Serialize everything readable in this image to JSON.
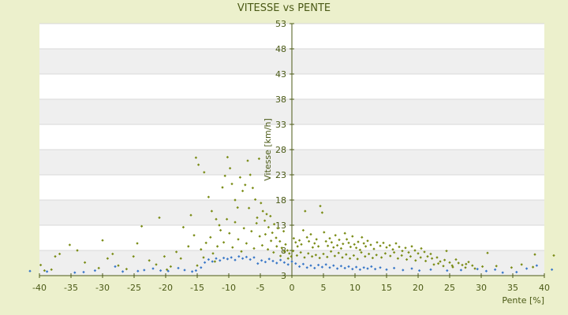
{
  "chart_data": {
    "type": "scatter",
    "title": "VITESSE vs PENTE",
    "xlabel": "Pente [%]",
    "ylabel": "Vitesse [km/h]",
    "xlim": [
      -40,
      40
    ],
    "ylim": [
      3,
      53
    ],
    "x_ticks": [
      "-40",
      "-35",
      "-30",
      "-25",
      "-20",
      "-15",
      "-10",
      "-5",
      "0",
      "5",
      "10",
      "15",
      "20",
      "25",
      "30",
      "35",
      "40"
    ],
    "y_ticks": [
      "3",
      "8",
      "13",
      "18",
      "23",
      "28",
      "33",
      "38",
      "43",
      "48",
      "53"
    ],
    "grid": true,
    "legend": "none",
    "colors": {
      "background": "#ecf0cc",
      "plot_band_light": "#ffffff",
      "plot_band_dark": "#efefef",
      "axis": "#4b5a16",
      "series_olive": "#7a8c16",
      "series_blue": "#3a78c8"
    },
    "series": [
      {
        "color": "olive",
        "points": [
          [
            -15.2,
            26.4
          ],
          [
            -14.8,
            25.0
          ],
          [
            -13.9,
            23.5
          ],
          [
            -13.2,
            18.6
          ],
          [
            -12.7,
            15.8
          ],
          [
            -12.0,
            14.2
          ],
          [
            -11.5,
            13.0
          ],
          [
            -11.0,
            20.5
          ],
          [
            -10.6,
            22.8
          ],
          [
            -10.2,
            26.5
          ],
          [
            -9.8,
            24.3
          ],
          [
            -9.5,
            21.2
          ],
          [
            -9.0,
            18.0
          ],
          [
            -8.6,
            16.5
          ],
          [
            -8.2,
            22.5
          ],
          [
            -7.8,
            19.8
          ],
          [
            -7.4,
            21.0
          ],
          [
            -7.0,
            25.8
          ],
          [
            -6.6,
            23.0
          ],
          [
            -6.2,
            20.4
          ],
          [
            -5.8,
            18.1
          ],
          [
            -5.5,
            14.5
          ],
          [
            -5.2,
            26.2
          ],
          [
            -4.9,
            17.4
          ],
          [
            -4.6,
            15.8
          ],
          [
            -4.3,
            13.9
          ],
          [
            -4.0,
            15.2
          ],
          [
            -3.7,
            12.6
          ],
          [
            -3.4,
            14.8
          ],
          [
            -3.1,
            11.5
          ],
          [
            -2.8,
            13.2
          ],
          [
            -2.5,
            10.5
          ],
          [
            -2.2,
            12.4
          ],
          [
            -1.9,
            9.8
          ],
          [
            -1.6,
            8.5
          ],
          [
            -1.3,
            11.8
          ],
          [
            -1.0,
            9.2
          ],
          [
            -0.7,
            8.0
          ],
          [
            -0.4,
            7.4
          ],
          [
            -0.1,
            6.8
          ],
          [
            0.3,
            10.4
          ],
          [
            0.6,
            9.6
          ],
          [
            0.9,
            8.8
          ],
          [
            1.2,
            10.0
          ],
          [
            1.5,
            9.2
          ],
          [
            1.8,
            12.0
          ],
          [
            2.1,
            15.8
          ],
          [
            2.4,
            10.6
          ],
          [
            2.7,
            9.8
          ],
          [
            3.0,
            11.2
          ],
          [
            3.3,
            8.6
          ],
          [
            3.6,
            9.4
          ],
          [
            3.9,
            10.2
          ],
          [
            4.2,
            8.8
          ],
          [
            4.5,
            16.8
          ],
          [
            4.8,
            15.5
          ],
          [
            5.1,
            11.6
          ],
          [
            5.4,
            9.8
          ],
          [
            5.7,
            8.9
          ],
          [
            6.0,
            10.4
          ],
          [
            6.3,
            9.6
          ],
          [
            6.6,
            8.6
          ],
          [
            6.9,
            11.0
          ],
          [
            7.2,
            9.0
          ],
          [
            7.5,
            10.1
          ],
          [
            7.8,
            8.4
          ],
          [
            8.1,
            9.3
          ],
          [
            8.4,
            11.4
          ],
          [
            8.7,
            10.2
          ],
          [
            9.0,
            9.5
          ],
          [
            9.3,
            8.7
          ],
          [
            9.6,
            10.8
          ],
          [
            9.9,
            9.2
          ],
          [
            10.2,
            8.5
          ],
          [
            10.5,
            9.7
          ],
          [
            10.8,
            8.1
          ],
          [
            11.1,
            10.6
          ],
          [
            11.4,
            9.4
          ],
          [
            11.7,
            8.8
          ],
          [
            12.0,
            9.9
          ],
          [
            12.5,
            9.1
          ],
          [
            13.0,
            8.3
          ],
          [
            13.5,
            9.6
          ],
          [
            14.0,
            8.9
          ],
          [
            14.5,
            9.5
          ],
          [
            15.0,
            8.6
          ],
          [
            15.5,
            9.0
          ],
          [
            16.0,
            8.2
          ],
          [
            16.5,
            9.4
          ],
          [
            17.0,
            8.7
          ],
          [
            17.5,
            7.9
          ],
          [
            18.0,
            8.5
          ],
          [
            18.5,
            7.6
          ],
          [
            19.0,
            8.8
          ],
          [
            19.5,
            8.0
          ],
          [
            20.0,
            7.4
          ],
          [
            20.5,
            8.4
          ],
          [
            21.0,
            7.7
          ],
          [
            21.5,
            6.8
          ],
          [
            22.0,
            7.3
          ],
          [
            22.5,
            5.2
          ],
          [
            23.0,
            6.6
          ],
          [
            23.5,
            5.8
          ],
          [
            24.0,
            4.9
          ],
          [
            24.5,
            7.9
          ],
          [
            25.0,
            5.6
          ],
          [
            25.5,
            4.7
          ],
          [
            26.0,
            6.2
          ],
          [
            27.0,
            5.1
          ],
          [
            27.5,
            4.6
          ],
          [
            28.0,
            5.7
          ],
          [
            29.0,
            4.4
          ],
          [
            31.0,
            7.5
          ],
          [
            38.5,
            7.2
          ],
          [
            41.5,
            7.0
          ],
          [
            -39.8,
            5.1
          ],
          [
            -39.2,
            4.0
          ],
          [
            -38.1,
            4.2
          ],
          [
            -37.5,
            6.8
          ],
          [
            -36.8,
            7.3
          ],
          [
            -35.2,
            9.1
          ],
          [
            -34.0,
            8.0
          ],
          [
            -32.8,
            5.6
          ],
          [
            -30.6,
            4.5
          ],
          [
            -30.0,
            10.0
          ],
          [
            -29.2,
            6.4
          ],
          [
            -28.4,
            7.3
          ],
          [
            -27.5,
            5.0
          ],
          [
            -26.2,
            4.3
          ],
          [
            -25.1,
            6.8
          ],
          [
            -24.5,
            9.4
          ],
          [
            -23.8,
            12.8
          ],
          [
            -22.6,
            6.0
          ],
          [
            -21.5,
            5.2
          ],
          [
            -21.0,
            14.5
          ],
          [
            -20.2,
            6.8
          ],
          [
            -19.8,
            4.2
          ],
          [
            -19.2,
            4.8
          ],
          [
            -18.3,
            7.7
          ],
          [
            -17.6,
            6.4
          ],
          [
            -17.2,
            12.6
          ],
          [
            -16.4,
            8.8
          ],
          [
            -16.0,
            15.0
          ],
          [
            -15.5,
            11.0
          ],
          [
            -15.0,
            5.0
          ],
          [
            -14.4,
            8.2
          ],
          [
            -14.0,
            6.6
          ],
          [
            -13.6,
            9.5
          ],
          [
            -12.9,
            10.6
          ],
          [
            -12.5,
            7.4
          ],
          [
            -12.2,
            5.8
          ],
          [
            -11.8,
            8.8
          ],
          [
            -11.3,
            12.0
          ],
          [
            -10.8,
            9.6
          ],
          [
            -10.3,
            14.2
          ],
          [
            -9.9,
            11.4
          ],
          [
            -9.4,
            8.6
          ],
          [
            -9.0,
            13.6
          ],
          [
            -8.5,
            10.2
          ],
          [
            -8.0,
            7.8
          ],
          [
            -7.6,
            12.4
          ],
          [
            -7.2,
            9.4
          ],
          [
            -6.8,
            16.4
          ],
          [
            -6.4,
            11.8
          ],
          [
            -6.0,
            8.4
          ],
          [
            -5.6,
            13.4
          ],
          [
            -5.1,
            10.8
          ],
          [
            -4.7,
            9.0
          ],
          [
            -4.2,
            11.2
          ],
          [
            -3.8,
            8.2
          ],
          [
            -3.3,
            9.9
          ],
          [
            -2.9,
            7.6
          ],
          [
            -2.4,
            8.8
          ],
          [
            -1.8,
            6.9
          ],
          [
            -1.2,
            7.8
          ],
          [
            -0.6,
            6.4
          ],
          [
            0.2,
            7.9
          ],
          [
            0.8,
            7.0
          ],
          [
            1.4,
            7.6
          ],
          [
            2.0,
            6.6
          ],
          [
            2.6,
            7.4
          ],
          [
            3.2,
            6.8
          ],
          [
            3.8,
            7.1
          ],
          [
            4.4,
            6.5
          ],
          [
            5.0,
            7.3
          ],
          [
            5.6,
            6.7
          ],
          [
            6.2,
            7.8
          ],
          [
            6.8,
            6.9
          ],
          [
            7.4,
            7.5
          ],
          [
            8.0,
            6.6
          ],
          [
            8.6,
            7.2
          ],
          [
            9.2,
            6.4
          ],
          [
            9.8,
            7.0
          ],
          [
            10.4,
            6.3
          ],
          [
            11.0,
            7.6
          ],
          [
            11.6,
            6.8
          ],
          [
            12.2,
            7.3
          ],
          [
            12.8,
            6.5
          ],
          [
            13.4,
            7.1
          ],
          [
            14.2,
            6.6
          ],
          [
            14.8,
            7.4
          ],
          [
            15.6,
            6.9
          ],
          [
            16.2,
            7.6
          ],
          [
            16.8,
            6.4
          ],
          [
            17.4,
            7.0
          ],
          [
            18.2,
            6.2
          ],
          [
            18.8,
            6.8
          ],
          [
            19.6,
            6.0
          ],
          [
            20.4,
            6.6
          ],
          [
            21.2,
            5.9
          ],
          [
            22.2,
            6.4
          ],
          [
            23.2,
            5.4
          ],
          [
            24.2,
            6.1
          ],
          [
            25.4,
            5.0
          ],
          [
            26.4,
            5.5
          ],
          [
            27.6,
            5.3
          ],
          [
            28.6,
            5.0
          ],
          [
            30.2,
            4.8
          ],
          [
            32.4,
            4.9
          ],
          [
            34.8,
            4.6
          ],
          [
            36.4,
            5.2
          ],
          [
            38.2,
            4.7
          ]
        ]
      },
      {
        "color": "blue",
        "points": [
          [
            -41.5,
            3.9
          ],
          [
            -38.8,
            3.8
          ],
          [
            -34.4,
            3.6
          ],
          [
            -33.0,
            3.7
          ],
          [
            -31.2,
            4.0
          ],
          [
            -28.0,
            4.8
          ],
          [
            -26.8,
            3.8
          ],
          [
            -24.4,
            3.9
          ],
          [
            -23.4,
            4.1
          ],
          [
            -22.0,
            4.4
          ],
          [
            -20.8,
            4.0
          ],
          [
            -19.6,
            3.9
          ],
          [
            -18.0,
            4.5
          ],
          [
            -17.0,
            4.1
          ],
          [
            -15.8,
            3.8
          ],
          [
            -15.2,
            4.0
          ],
          [
            -14.4,
            4.6
          ],
          [
            -13.8,
            5.6
          ],
          [
            -13.2,
            6.2
          ],
          [
            -12.6,
            5.8
          ],
          [
            -12.0,
            6.4
          ],
          [
            -11.4,
            6.0
          ],
          [
            -10.8,
            6.5
          ],
          [
            -10.2,
            6.3
          ],
          [
            -9.6,
            6.6
          ],
          [
            -9.0,
            6.1
          ],
          [
            -8.4,
            6.8
          ],
          [
            -7.8,
            6.4
          ],
          [
            -7.2,
            6.7
          ],
          [
            -6.6,
            6.2
          ],
          [
            -6.0,
            6.6
          ],
          [
            -5.4,
            5.4
          ],
          [
            -4.8,
            6.0
          ],
          [
            -4.2,
            5.7
          ],
          [
            -3.6,
            6.3
          ],
          [
            -3.0,
            5.9
          ],
          [
            -2.4,
            5.5
          ],
          [
            -1.8,
            6.1
          ],
          [
            -1.2,
            5.6
          ],
          [
            -0.6,
            5.2
          ],
          [
            0.0,
            5.8
          ],
          [
            0.6,
            5.4
          ],
          [
            1.2,
            4.8
          ],
          [
            1.8,
            5.3
          ],
          [
            2.4,
            4.6
          ],
          [
            3.0,
            5.0
          ],
          [
            3.6,
            4.5
          ],
          [
            4.2,
            5.1
          ],
          [
            4.8,
            4.7
          ],
          [
            5.4,
            5.2
          ],
          [
            6.0,
            4.6
          ],
          [
            6.6,
            5.0
          ],
          [
            7.2,
            4.4
          ],
          [
            7.8,
            4.9
          ],
          [
            8.4,
            4.5
          ],
          [
            9.0,
            4.8
          ],
          [
            9.6,
            4.3
          ],
          [
            10.2,
            4.7
          ],
          [
            10.8,
            4.2
          ],
          [
            11.4,
            4.6
          ],
          [
            12.0,
            4.4
          ],
          [
            12.6,
            4.8
          ],
          [
            13.2,
            4.3
          ],
          [
            14.0,
            4.6
          ],
          [
            15.0,
            4.2
          ],
          [
            16.2,
            4.5
          ],
          [
            17.6,
            4.1
          ],
          [
            19.0,
            4.4
          ],
          [
            20.2,
            4.0
          ],
          [
            22.0,
            4.2
          ],
          [
            24.6,
            4.0
          ],
          [
            26.8,
            4.1
          ],
          [
            29.4,
            4.3
          ],
          [
            30.8,
            3.9
          ],
          [
            32.2,
            4.2
          ],
          [
            33.4,
            3.6
          ],
          [
            35.6,
            3.7
          ],
          [
            37.2,
            4.4
          ],
          [
            38.8,
            5.0
          ],
          [
            41.2,
            4.2
          ]
        ]
      }
    ]
  }
}
